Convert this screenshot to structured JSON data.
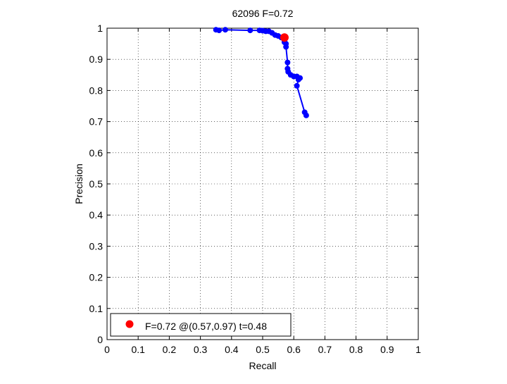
{
  "chart_data": {
    "type": "line",
    "title": "62096 F=0.72",
    "xlabel": "Recall",
    "ylabel": "Precision",
    "xlim": [
      0,
      1
    ],
    "ylim": [
      0,
      1
    ],
    "xticks": [
      0,
      0.1,
      0.2,
      0.3,
      0.4,
      0.5,
      0.6,
      0.7,
      0.8,
      0.9,
      1
    ],
    "yticks": [
      0,
      0.1,
      0.2,
      0.3,
      0.4,
      0.5,
      0.6,
      0.7,
      0.8,
      0.9,
      1
    ],
    "xtick_labels": [
      "0",
      "0.1",
      "0.2",
      "0.3",
      "0.4",
      "0.5",
      "0.6",
      "0.7",
      "0.8",
      "0.9",
      "1"
    ],
    "ytick_labels": [
      "0",
      "0.1",
      "0.2",
      "0.3",
      "0.4",
      "0.5",
      "0.6",
      "0.7",
      "0.8",
      "0.9",
      "1"
    ],
    "grid": true,
    "series": [
      {
        "color": "#0000ff",
        "marker": "circle",
        "x": [
          0.35,
          0.36,
          0.38,
          0.46,
          0.49,
          0.5,
          0.51,
          0.52,
          0.53,
          0.54,
          0.55,
          0.56,
          0.57,
          0.57,
          0.575,
          0.575,
          0.58,
          0.58,
          0.582,
          0.59,
          0.6,
          0.61,
          0.62,
          0.615,
          0.61,
          0.635,
          0.64
        ],
        "y": [
          0.995,
          0.993,
          0.995,
          0.993,
          0.993,
          0.992,
          0.99,
          0.99,
          0.985,
          0.978,
          0.975,
          0.97,
          0.96,
          0.955,
          0.95,
          0.94,
          0.89,
          0.87,
          0.86,
          0.85,
          0.845,
          0.845,
          0.84,
          0.835,
          0.815,
          0.73,
          0.72
        ]
      }
    ],
    "highlight_point": {
      "x": 0.57,
      "y": 0.97,
      "color": "#ff0000"
    },
    "legend": {
      "position": "bottom-left",
      "label": "F=0.72 @(0.57,0.97) t=0.48",
      "marker_color": "#ff0000"
    }
  }
}
